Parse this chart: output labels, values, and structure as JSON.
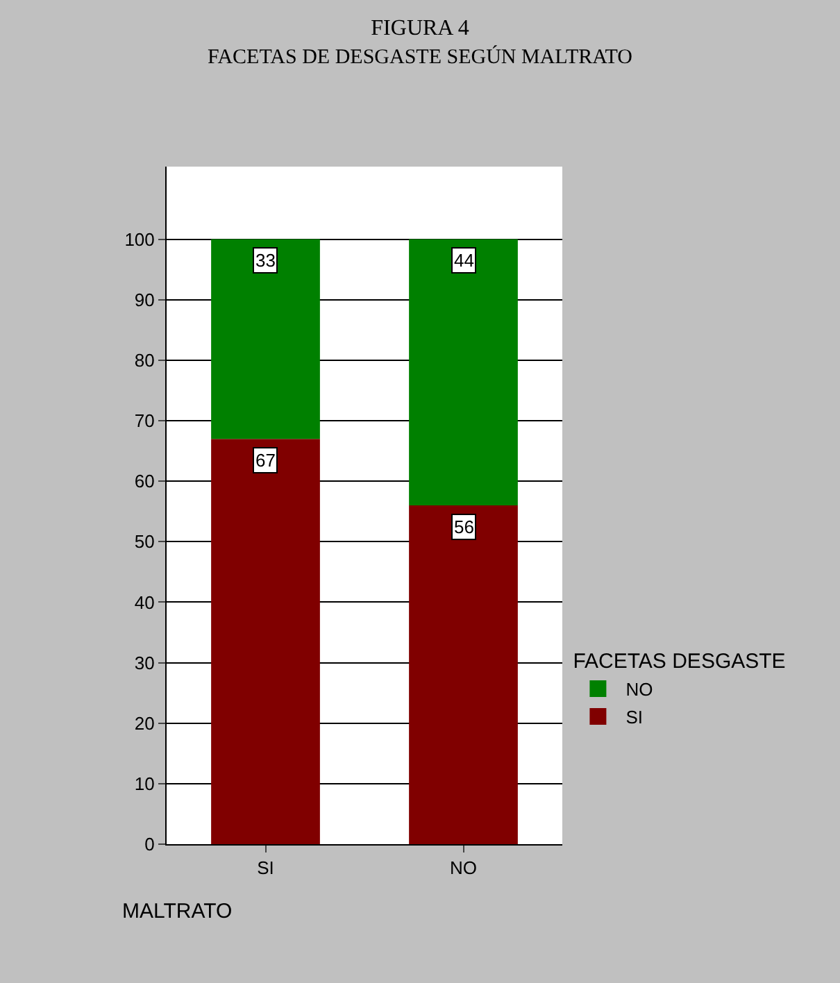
{
  "chart_data": {
    "type": "bar",
    "title": "FIGURA 4",
    "subtitle": "FACETAS DE DESGASTE SEGÚN MALTRATO",
    "xlabel": "MALTRATO",
    "legend_title": "FACETAS DESGASTE",
    "categories": [
      "SI",
      "NO"
    ],
    "series": [
      {
        "name": "SI",
        "color": "#800000",
        "values": [
          67,
          56
        ]
      },
      {
        "name": "NO",
        "color": "#008000",
        "values": [
          33,
          44
        ]
      }
    ],
    "stacked": true,
    "data_labels": true,
    "ylim": [
      0,
      112
    ],
    "yticks": [
      0,
      10,
      20,
      30,
      40,
      50,
      60,
      70,
      80,
      90,
      100
    ],
    "grid": "y",
    "legend": "right"
  }
}
